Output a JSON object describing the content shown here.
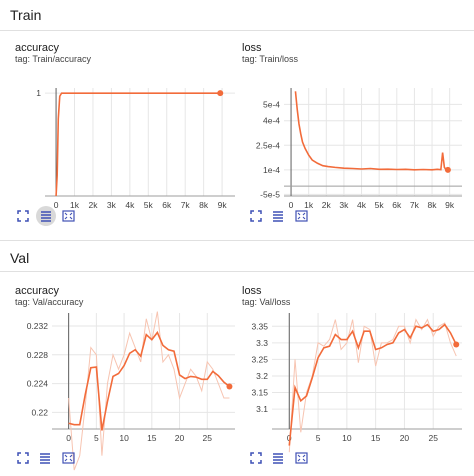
{
  "sections": [
    {
      "title": "Train"
    },
    {
      "title": "Val"
    }
  ],
  "cards": [
    {
      "title": "accuracy",
      "tag": "tag: Train/accuracy"
    },
    {
      "title": "loss",
      "tag": "tag: Train/loss"
    },
    {
      "title": "accuracy",
      "tag": "tag: Val/accuracy"
    },
    {
      "title": "loss",
      "tag": "tag: Val/loss"
    }
  ],
  "icons": [
    "fullscreen-icon",
    "toggle-log-scale-icon",
    "fit-domain-icon"
  ],
  "colors": {
    "line": "#f26b3a",
    "line_light": "#f7c4b1",
    "axis": "#9e9e9e",
    "grid": "#e6e6e6"
  },
  "chart_data": [
    {
      "type": "line",
      "title": "accuracy",
      "x": [
        0,
        60,
        120,
        200,
        300,
        500,
        1000,
        2000,
        3000,
        4000,
        5000,
        6000,
        7000,
        8000,
        8900
      ],
      "y": [
        0,
        0.2,
        0.75,
        0.97,
        1,
        1,
        1,
        1,
        1,
        1,
        1,
        1,
        1,
        1,
        1
      ],
      "xlim": [
        -600,
        9700
      ],
      "ylim": [
        0,
        1.05
      ],
      "xticks": [
        "0",
        "1k",
        "2k",
        "3k",
        "4k",
        "5k",
        "6k",
        "7k",
        "8k",
        "9k"
      ],
      "yticks": [
        "1"
      ],
      "grid": true
    },
    {
      "type": "line",
      "title": "loss",
      "x": [
        250,
        350,
        450,
        550,
        650,
        800,
        1000,
        1200,
        1500,
        1800,
        2100,
        2500,
        3000,
        3500,
        4000,
        4500,
        5000,
        5500,
        6000,
        6500,
        7000,
        7500,
        8000,
        8300,
        8500,
        8600,
        8700,
        8800,
        8900
      ],
      "y": [
        0.00058,
        0.00047,
        0.00038,
        0.00032,
        0.00027,
        0.00023,
        0.00019,
        0.00016,
        0.00014,
        0.000125,
        0.00012,
        0.000115,
        0.00011,
        0.000108,
        0.000105,
        0.000108,
        0.000103,
        0.000104,
        0.000102,
        0.000103,
        0.0001,
        0.000102,
        0.0001,
        0.000103,
        0.000101,
        0.000205,
        0.000115,
        0.0001,
        0.0001
      ],
      "xlim": [
        -400,
        9700
      ],
      "ylim": [
        -6e-05,
        0.0006
      ],
      "xticks": [
        "0",
        "1k",
        "2k",
        "3k",
        "4k",
        "5k",
        "6k",
        "7k",
        "8k",
        "9k"
      ],
      "yticks": [
        "5e-4",
        "4e-4",
        "2.5e-4",
        "1e-4",
        "-5e-5"
      ],
      "grid": true
    },
    {
      "type": "line",
      "title": "accuracy",
      "x": [
        0,
        1,
        2,
        3,
        4,
        5,
        6,
        7,
        8,
        9,
        10,
        11,
        12,
        13,
        14,
        15,
        16,
        17,
        18,
        19,
        20,
        21,
        22,
        23,
        24,
        25,
        26,
        27,
        28,
        29
      ],
      "y": [
        0.2185,
        0.2183,
        0.2183,
        0.2225,
        0.2262,
        0.2263,
        0.2175,
        0.2215,
        0.225,
        0.2254,
        0.2265,
        0.2282,
        0.2287,
        0.2278,
        0.2308,
        0.2301,
        0.2311,
        0.2293,
        0.2287,
        0.2285,
        0.2252,
        0.2247,
        0.225,
        0.2249,
        0.2246,
        0.2246,
        0.2257,
        0.2251,
        0.2242,
        0.2236
      ],
      "y_raw": [
        0.222,
        0.212,
        0.214,
        0.221,
        0.229,
        0.228,
        0.214,
        0.224,
        0.228,
        0.226,
        0.228,
        0.231,
        0.229,
        0.227,
        0.233,
        0.23,
        0.234,
        0.227,
        0.228,
        0.226,
        0.222,
        0.224,
        0.226,
        0.225,
        0.223,
        0.227,
        0.226,
        0.224,
        0.222,
        0.222
      ],
      "xlim": [
        -3,
        30
      ],
      "ylim": [
        0.2177,
        0.2338
      ],
      "xticks": [
        "0",
        "5",
        "10",
        "15",
        "20",
        "25"
      ],
      "yticks": [
        "0.232",
        "0.228",
        "0.224",
        "0.22"
      ],
      "grid": true
    },
    {
      "type": "line",
      "title": "loss",
      "x": [
        0,
        1,
        2,
        3,
        4,
        5,
        6,
        7,
        8,
        9,
        10,
        11,
        12,
        13,
        14,
        15,
        16,
        17,
        18,
        19,
        20,
        21,
        22,
        23,
        24,
        25,
        26,
        27,
        28,
        29
      ],
      "y": [
        2.99,
        3.165,
        3.125,
        3.14,
        3.195,
        3.255,
        3.285,
        3.29,
        3.325,
        3.31,
        3.31,
        3.335,
        3.285,
        3.335,
        3.335,
        3.28,
        3.285,
        3.295,
        3.3,
        3.33,
        3.34,
        3.315,
        3.35,
        3.345,
        3.355,
        3.335,
        3.34,
        3.355,
        3.33,
        3.295
      ],
      "y_raw": [
        2.97,
        3.25,
        3.03,
        3.15,
        3.2,
        3.3,
        3.29,
        3.31,
        3.37,
        3.28,
        3.3,
        3.37,
        3.24,
        3.35,
        3.34,
        3.23,
        3.3,
        3.3,
        3.31,
        3.35,
        3.35,
        3.3,
        3.37,
        3.34,
        3.37,
        3.32,
        3.35,
        3.36,
        3.3,
        3.26
      ],
      "xlim": [
        -3,
        30
      ],
      "ylim": [
        3.04,
        3.39
      ],
      "xticks": [
        "0",
        "5",
        "10",
        "15",
        "20",
        "25"
      ],
      "yticks": [
        "3.35",
        "3.3",
        "3.25",
        "3.2",
        "3.15",
        "3.1"
      ],
      "grid": true
    }
  ]
}
